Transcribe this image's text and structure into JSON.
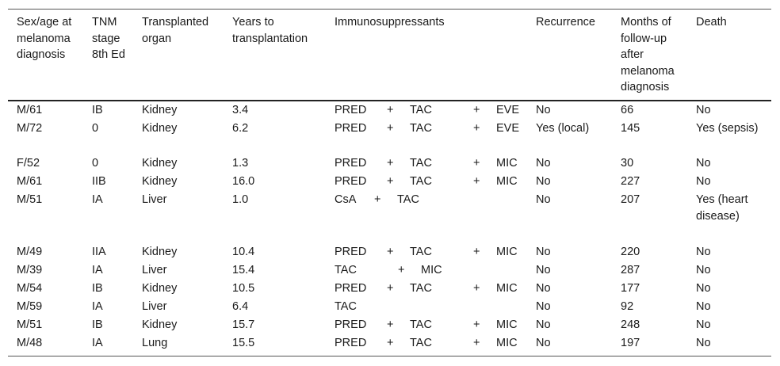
{
  "headers": [
    "Sex/age at melanoma diagnosis",
    "TNM stage 8th Ed",
    "Transplanted organ",
    "Years to transplantation",
    "Immunosuppressants",
    "Recurrence",
    "Months of follow-up after melanoma diagnosis",
    "Death"
  ],
  "rows": [
    {
      "sex_age": "M/61",
      "tnm": "IB",
      "organ": "Kidney",
      "years": "3.4",
      "immuno": [
        "PRED",
        "+",
        "TAC",
        "+",
        "EVE"
      ],
      "recurrence": "No",
      "months": "66",
      "death": "No"
    },
    {
      "sex_age": "M/72",
      "tnm": "0",
      "organ": "Kidney",
      "years": "6.2",
      "immuno": [
        "PRED",
        "+",
        "TAC",
        "+",
        "EVE"
      ],
      "recurrence": "Yes (local)",
      "months": "145",
      "death": "Yes (sepsis)"
    },
    {
      "sex_age": "F/52",
      "tnm": "0",
      "organ": "Kidney",
      "years": "1.3",
      "immuno": [
        "PRED",
        "+",
        "TAC",
        "+",
        "MIC"
      ],
      "recurrence": "No",
      "months": "30",
      "death": "No"
    },
    {
      "sex_age": "M/61",
      "tnm": "IIB",
      "organ": "Kidney",
      "years": "16.0",
      "immuno": [
        "PRED",
        "+",
        "TAC",
        "+",
        "MIC"
      ],
      "recurrence": "No",
      "months": "227",
      "death": "No"
    },
    {
      "sex_age": "M/51",
      "tnm": "IA",
      "organ": "Liver",
      "years": "1.0",
      "immuno": [
        "CsA",
        "+",
        "TAC"
      ],
      "recurrence": "No",
      "months": "207",
      "death": "Yes (heart disease)"
    },
    {
      "sex_age": "M/49",
      "tnm": "IIA",
      "organ": "Kidney",
      "years": "10.4",
      "immuno": [
        "PRED",
        "+",
        "TAC",
        "+",
        "MIC"
      ],
      "recurrence": "No",
      "months": "220",
      "death": "No"
    },
    {
      "sex_age": "M/39",
      "tnm": "IA",
      "organ": "Liver",
      "years": "15.4",
      "immuno": [
        "TAC",
        "+",
        "MIC"
      ],
      "recurrence": "No",
      "months": "287",
      "death": "No"
    },
    {
      "sex_age": "M/54",
      "tnm": "IB",
      "organ": "Kidney",
      "years": "10.5",
      "immuno": [
        "PRED",
        "+",
        "TAC",
        "+",
        "MIC"
      ],
      "recurrence": "No",
      "months": "177",
      "death": "No"
    },
    {
      "sex_age": "M/59",
      "tnm": "IA",
      "organ": "Liver",
      "years": "6.4",
      "immuno": [
        "TAC"
      ],
      "recurrence": "No",
      "months": "92",
      "death": "No"
    },
    {
      "sex_age": "M/51",
      "tnm": "IB",
      "organ": "Kidney",
      "years": "15.7",
      "immuno": [
        "PRED",
        "+",
        "TAC",
        "+",
        "MIC"
      ],
      "recurrence": "No",
      "months": "248",
      "death": "No"
    },
    {
      "sex_age": "M/48",
      "tnm": "IA",
      "organ": "Lung",
      "years": "15.5",
      "immuno": [
        "PRED",
        "+",
        "TAC",
        "+",
        "MIC"
      ],
      "recurrence": "No",
      "months": "197",
      "death": "No"
    }
  ]
}
